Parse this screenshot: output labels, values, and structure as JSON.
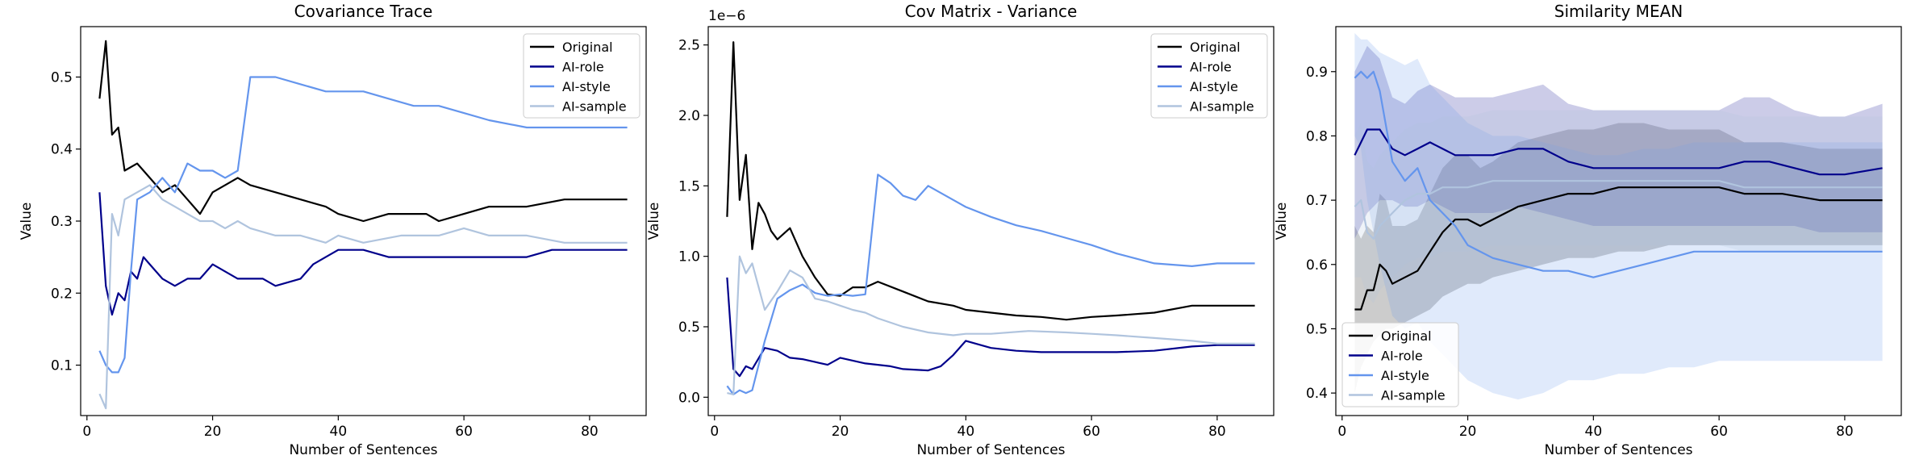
{
  "colors": {
    "Original": "#000000",
    "AI-role": "#00008b",
    "AI-style": "#6495ed",
    "AI-sample": "#b0c4de"
  },
  "chart_data": [
    {
      "type": "line",
      "title": "Covariance Trace",
      "xlabel": "Number of Sentences",
      "ylabel": "Value",
      "xlim": [
        -1,
        89
      ],
      "ylim": [
        0.03,
        0.57
      ],
      "xticks": [
        0,
        20,
        40,
        60,
        80
      ],
      "yticks": [
        0.1,
        0.2,
        0.3,
        0.4,
        0.5
      ],
      "ytick_labels": [
        "0.1",
        "0.2",
        "0.3",
        "0.4",
        "0.5"
      ],
      "offset_label": "",
      "grid": false,
      "legend": "upper right",
      "series": [
        {
          "name": "Original",
          "x": [
            2,
            3,
            4,
            5,
            6,
            8,
            10,
            12,
            14,
            16,
            18,
            20,
            22,
            24,
            26,
            30,
            34,
            38,
            40,
            44,
            48,
            50,
            54,
            56,
            60,
            64,
            70,
            76,
            80,
            84,
            86
          ],
          "y": [
            0.47,
            0.55,
            0.42,
            0.43,
            0.37,
            0.38,
            0.36,
            0.34,
            0.35,
            0.33,
            0.31,
            0.34,
            0.35,
            0.36,
            0.35,
            0.34,
            0.33,
            0.32,
            0.31,
            0.3,
            0.31,
            0.31,
            0.31,
            0.3,
            0.31,
            0.32,
            0.32,
            0.33,
            0.33,
            0.33,
            0.33
          ]
        },
        {
          "name": "AI-role",
          "x": [
            2,
            3,
            4,
            5,
            6,
            7,
            8,
            9,
            10,
            12,
            14,
            16,
            18,
            20,
            24,
            28,
            30,
            34,
            36,
            38,
            40,
            44,
            48,
            52,
            56,
            60,
            64,
            70,
            74,
            80,
            86
          ],
          "y": [
            0.34,
            0.21,
            0.17,
            0.2,
            0.19,
            0.23,
            0.22,
            0.25,
            0.24,
            0.22,
            0.21,
            0.22,
            0.22,
            0.24,
            0.22,
            0.22,
            0.21,
            0.22,
            0.24,
            0.25,
            0.26,
            0.26,
            0.25,
            0.25,
            0.25,
            0.25,
            0.25,
            0.25,
            0.26,
            0.26,
            0.26
          ]
        },
        {
          "name": "AI-style",
          "x": [
            2,
            3,
            4,
            5,
            6,
            7,
            8,
            10,
            12,
            14,
            16,
            18,
            20,
            22,
            24,
            26,
            30,
            34,
            38,
            40,
            44,
            48,
            52,
            56,
            60,
            64,
            70,
            76,
            80,
            86
          ],
          "y": [
            0.12,
            0.1,
            0.09,
            0.09,
            0.11,
            0.23,
            0.33,
            0.34,
            0.36,
            0.34,
            0.38,
            0.37,
            0.37,
            0.36,
            0.37,
            0.5,
            0.5,
            0.49,
            0.48,
            0.48,
            0.48,
            0.47,
            0.46,
            0.46,
            0.45,
            0.44,
            0.43,
            0.43,
            0.43,
            0.43
          ]
        },
        {
          "name": "AI-sample",
          "x": [
            2,
            3,
            4,
            5,
            6,
            8,
            10,
            12,
            14,
            16,
            18,
            20,
            22,
            24,
            26,
            30,
            34,
            38,
            40,
            44,
            50,
            56,
            60,
            64,
            70,
            76,
            80,
            86
          ],
          "y": [
            0.06,
            0.04,
            0.31,
            0.28,
            0.33,
            0.34,
            0.35,
            0.33,
            0.32,
            0.31,
            0.3,
            0.3,
            0.29,
            0.3,
            0.29,
            0.28,
            0.28,
            0.27,
            0.28,
            0.27,
            0.28,
            0.28,
            0.29,
            0.28,
            0.28,
            0.27,
            0.27,
            0.27
          ]
        }
      ]
    },
    {
      "type": "line",
      "title": "Cov Matrix - Variance",
      "xlabel": "Number of Sentences",
      "ylabel": "Value",
      "xlim": [
        -1,
        89
      ],
      "ylim": [
        -0.13,
        2.63
      ],
      "xticks": [
        0,
        20,
        40,
        60,
        80
      ],
      "yticks": [
        0.0,
        0.5,
        1.0,
        1.5,
        2.0,
        2.5
      ],
      "ytick_labels": [
        "0.0",
        "0.5",
        "1.0",
        "1.5",
        "2.0",
        "2.5"
      ],
      "offset_label": "1e−6",
      "grid": false,
      "legend": "upper right",
      "series": [
        {
          "name": "Original",
          "x": [
            2,
            3,
            4,
            5,
            6,
            7,
            8,
            9,
            10,
            12,
            14,
            16,
            18,
            20,
            22,
            24,
            26,
            30,
            34,
            38,
            40,
            44,
            48,
            52,
            56,
            60,
            64,
            70,
            76,
            80,
            86
          ],
          "y": [
            1.28,
            2.52,
            1.4,
            1.72,
            1.05,
            1.38,
            1.3,
            1.18,
            1.12,
            1.2,
            1.0,
            0.85,
            0.73,
            0.72,
            0.78,
            0.78,
            0.82,
            0.75,
            0.68,
            0.65,
            0.62,
            0.6,
            0.58,
            0.57,
            0.55,
            0.57,
            0.58,
            0.6,
            0.65,
            0.65,
            0.65
          ]
        },
        {
          "name": "AI-role",
          "x": [
            2,
            3,
            4,
            5,
            6,
            8,
            10,
            12,
            14,
            16,
            18,
            20,
            24,
            28,
            30,
            34,
            36,
            38,
            40,
            44,
            48,
            52,
            56,
            60,
            64,
            70,
            76,
            80,
            86
          ],
          "y": [
            0.85,
            0.2,
            0.15,
            0.22,
            0.2,
            0.35,
            0.33,
            0.28,
            0.27,
            0.25,
            0.23,
            0.28,
            0.24,
            0.22,
            0.2,
            0.19,
            0.22,
            0.3,
            0.4,
            0.35,
            0.33,
            0.32,
            0.32,
            0.32,
            0.32,
            0.33,
            0.36,
            0.37,
            0.37
          ]
        },
        {
          "name": "AI-style",
          "x": [
            2,
            3,
            4,
            5,
            6,
            8,
            10,
            12,
            14,
            16,
            18,
            20,
            22,
            24,
            26,
            28,
            30,
            32,
            34,
            38,
            40,
            44,
            48,
            52,
            56,
            60,
            64,
            70,
            76,
            80,
            86
          ],
          "y": [
            0.08,
            0.02,
            0.05,
            0.03,
            0.05,
            0.4,
            0.7,
            0.76,
            0.8,
            0.74,
            0.72,
            0.73,
            0.72,
            0.73,
            1.58,
            1.52,
            1.43,
            1.4,
            1.5,
            1.4,
            1.35,
            1.28,
            1.22,
            1.18,
            1.13,
            1.08,
            1.02,
            0.95,
            0.93,
            0.95,
            0.95
          ]
        },
        {
          "name": "AI-sample",
          "x": [
            2,
            3,
            4,
            5,
            6,
            8,
            10,
            12,
            14,
            16,
            18,
            20,
            22,
            24,
            26,
            30,
            34,
            38,
            40,
            44,
            50,
            56,
            60,
            64,
            70,
            76,
            80,
            86
          ],
          "y": [
            0.03,
            0.02,
            1.0,
            0.88,
            0.95,
            0.62,
            0.75,
            0.9,
            0.85,
            0.7,
            0.68,
            0.65,
            0.62,
            0.6,
            0.56,
            0.5,
            0.46,
            0.44,
            0.45,
            0.45,
            0.47,
            0.46,
            0.45,
            0.44,
            0.42,
            0.4,
            0.38,
            0.38
          ]
        }
      ]
    },
    {
      "type": "line",
      "title": "Similarity MEAN",
      "xlabel": "Number of Sentences",
      "ylabel": "Value",
      "xlim": [
        -1,
        89
      ],
      "ylim": [
        0.365,
        0.97
      ],
      "xticks": [
        0,
        20,
        40,
        60,
        80
      ],
      "yticks": [
        0.4,
        0.5,
        0.6,
        0.7,
        0.8,
        0.9
      ],
      "ytick_labels": [
        "0.4",
        "0.5",
        "0.6",
        "0.7",
        "0.8",
        "0.9"
      ],
      "offset_label": "",
      "grid": false,
      "legend": "lower left",
      "series": [
        {
          "name": "Original",
          "x": [
            2,
            3,
            4,
            5,
            6,
            7,
            8,
            10,
            12,
            14,
            16,
            18,
            20,
            22,
            24,
            28,
            32,
            36,
            40,
            44,
            48,
            52,
            56,
            60,
            64,
            70,
            76,
            80,
            86
          ],
          "y": [
            0.53,
            0.53,
            0.56,
            0.56,
            0.6,
            0.59,
            0.57,
            0.58,
            0.59,
            0.62,
            0.65,
            0.67,
            0.67,
            0.66,
            0.67,
            0.69,
            0.7,
            0.71,
            0.71,
            0.72,
            0.72,
            0.72,
            0.72,
            0.72,
            0.71,
            0.71,
            0.7,
            0.7,
            0.7
          ],
          "band_lower": [
            0.4,
            0.44,
            0.46,
            0.48,
            0.49,
            0.5,
            0.5,
            0.51,
            0.52,
            0.53,
            0.55,
            0.56,
            0.57,
            0.57,
            0.58,
            0.59,
            0.6,
            0.61,
            0.61,
            0.62,
            0.62,
            0.63,
            0.63,
            0.63,
            0.63,
            0.63,
            0.63,
            0.63,
            0.63
          ],
          "band_upper": [
            0.66,
            0.64,
            0.66,
            0.65,
            0.71,
            0.7,
            0.66,
            0.66,
            0.67,
            0.71,
            0.75,
            0.77,
            0.77,
            0.75,
            0.76,
            0.79,
            0.8,
            0.81,
            0.81,
            0.82,
            0.82,
            0.81,
            0.81,
            0.81,
            0.79,
            0.79,
            0.78,
            0.78,
            0.78
          ]
        },
        {
          "name": "AI-role",
          "x": [
            2,
            3,
            4,
            5,
            6,
            8,
            10,
            12,
            14,
            16,
            18,
            20,
            24,
            28,
            32,
            36,
            40,
            44,
            48,
            52,
            56,
            60,
            64,
            68,
            72,
            76,
            80,
            86
          ],
          "y": [
            0.77,
            0.79,
            0.81,
            0.81,
            0.81,
            0.78,
            0.77,
            0.78,
            0.79,
            0.78,
            0.77,
            0.77,
            0.77,
            0.78,
            0.78,
            0.76,
            0.75,
            0.75,
            0.75,
            0.75,
            0.75,
            0.75,
            0.76,
            0.76,
            0.75,
            0.74,
            0.74,
            0.75
          ],
          "band_lower": [
            0.64,
            0.66,
            0.68,
            0.69,
            0.7,
            0.7,
            0.69,
            0.69,
            0.7,
            0.69,
            0.68,
            0.68,
            0.68,
            0.69,
            0.68,
            0.67,
            0.66,
            0.66,
            0.66,
            0.66,
            0.66,
            0.66,
            0.66,
            0.66,
            0.66,
            0.65,
            0.65,
            0.65
          ],
          "band_upper": [
            0.9,
            0.92,
            0.94,
            0.93,
            0.92,
            0.86,
            0.85,
            0.87,
            0.88,
            0.87,
            0.86,
            0.86,
            0.86,
            0.87,
            0.88,
            0.85,
            0.84,
            0.84,
            0.84,
            0.84,
            0.84,
            0.84,
            0.86,
            0.86,
            0.84,
            0.83,
            0.83,
            0.85
          ]
        },
        {
          "name": "AI-style",
          "x": [
            2,
            3,
            4,
            5,
            6,
            8,
            10,
            12,
            14,
            16,
            18,
            20,
            24,
            28,
            32,
            36,
            40,
            44,
            48,
            52,
            56,
            60,
            64,
            68,
            72,
            76,
            80,
            86
          ],
          "y": [
            0.89,
            0.9,
            0.89,
            0.9,
            0.87,
            0.76,
            0.73,
            0.75,
            0.7,
            0.68,
            0.66,
            0.63,
            0.61,
            0.6,
            0.59,
            0.59,
            0.58,
            0.59,
            0.6,
            0.61,
            0.62,
            0.62,
            0.62,
            0.62,
            0.62,
            0.62,
            0.62,
            0.62
          ],
          "band_lower": [
            0.8,
            0.78,
            0.7,
            0.65,
            0.6,
            0.52,
            0.5,
            0.51,
            0.48,
            0.46,
            0.44,
            0.42,
            0.4,
            0.39,
            0.4,
            0.42,
            0.42,
            0.43,
            0.43,
            0.44,
            0.44,
            0.45,
            0.45,
            0.45,
            0.45,
            0.45,
            0.45,
            0.45
          ],
          "band_upper": [
            0.96,
            0.95,
            0.95,
            0.94,
            0.93,
            0.92,
            0.91,
            0.92,
            0.88,
            0.86,
            0.84,
            0.82,
            0.8,
            0.8,
            0.79,
            0.78,
            0.77,
            0.77,
            0.78,
            0.78,
            0.79,
            0.79,
            0.79,
            0.79,
            0.79,
            0.79,
            0.79,
            0.79
          ]
        },
        {
          "name": "AI-sample",
          "x": [
            2,
            3,
            4,
            5,
            6,
            8,
            10,
            12,
            14,
            16,
            18,
            20,
            24,
            28,
            32,
            36,
            40,
            44,
            48,
            52,
            56,
            60,
            64,
            68,
            72,
            76,
            80,
            86
          ],
          "y": [
            0.69,
            0.7,
            0.65,
            0.64,
            0.66,
            0.68,
            0.7,
            0.71,
            0.71,
            0.72,
            0.72,
            0.72,
            0.73,
            0.73,
            0.73,
            0.73,
            0.73,
            0.73,
            0.73,
            0.73,
            0.73,
            0.73,
            0.72,
            0.72,
            0.72,
            0.72,
            0.72,
            0.72
          ],
          "band_lower": [
            0.58,
            0.58,
            0.55,
            0.54,
            0.56,
            0.58,
            0.6,
            0.61,
            0.61,
            0.62,
            0.62,
            0.62,
            0.63,
            0.63,
            0.63,
            0.63,
            0.63,
            0.63,
            0.63,
            0.63,
            0.63,
            0.63,
            0.62,
            0.62,
            0.62,
            0.62,
            0.62,
            0.62
          ],
          "band_upper": [
            0.8,
            0.82,
            0.76,
            0.75,
            0.77,
            0.79,
            0.81,
            0.82,
            0.82,
            0.83,
            0.83,
            0.83,
            0.84,
            0.84,
            0.84,
            0.84,
            0.84,
            0.84,
            0.84,
            0.84,
            0.84,
            0.84,
            0.83,
            0.83,
            0.83,
            0.83,
            0.83,
            0.83
          ]
        }
      ]
    }
  ]
}
